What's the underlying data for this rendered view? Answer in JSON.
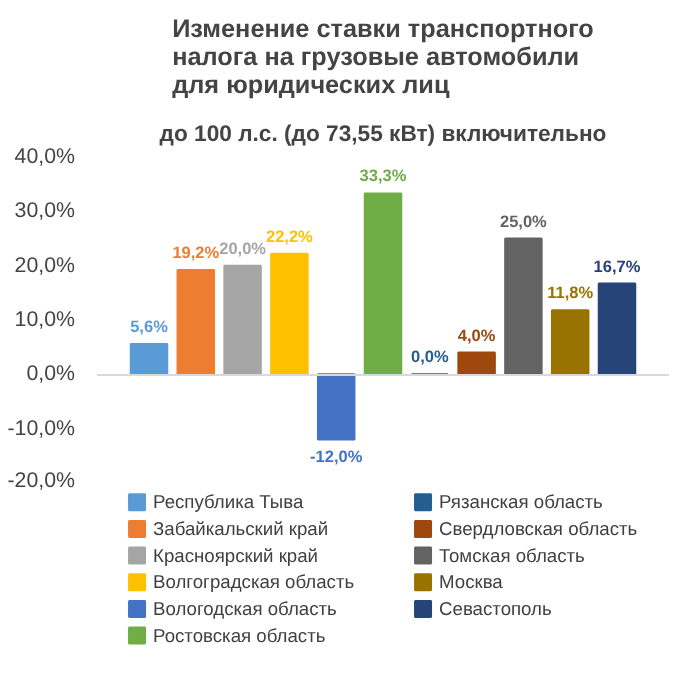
{
  "chart_data": {
    "type": "bar",
    "title": "Изменение ставки транспортного\nналога на грузовые автомобили\nдля юридических лиц",
    "subtitle": "до 100 л.с. (до 73,55 кВт) включительно",
    "categories": [
      null
    ],
    "series": [
      {
        "name": "Республика Тыва",
        "color": "#5b9bd5",
        "values": [
          5.6
        ],
        "value_labels": [
          "5,6%"
        ]
      },
      {
        "name": "Забайкальский край",
        "color": "#ed7d31",
        "values": [
          19.2
        ],
        "value_labels": [
          "19,2%"
        ]
      },
      {
        "name": "Красноярский край",
        "color": "#a5a5a5",
        "values": [
          20.0
        ],
        "value_labels": [
          "20,0%"
        ]
      },
      {
        "name": "Волгоградская область",
        "color": "#ffc000",
        "values": [
          22.2
        ],
        "value_labels": [
          "22,2%"
        ]
      },
      {
        "name": "Вологодская область",
        "color": "#4472c4",
        "values": [
          -12.0
        ],
        "value_labels": [
          "-12,0%"
        ]
      },
      {
        "name": "Ростовская область",
        "color": "#70ad47",
        "values": [
          33.3
        ],
        "value_labels": [
          "33,3%"
        ]
      },
      {
        "name": "Рязанская область",
        "color": "#255e91",
        "values": [
          0.0
        ],
        "value_labels": [
          "0,0%"
        ]
      },
      {
        "name": "Свердловская область",
        "color": "#9e480e",
        "values": [
          4.0
        ],
        "value_labels": [
          "4,0%"
        ]
      },
      {
        "name": "Томская область",
        "color": "#636363",
        "values": [
          25.0
        ],
        "value_labels": [
          "25,0%"
        ]
      },
      {
        "name": "Москва",
        "color": "#997300",
        "values": [
          11.8
        ],
        "value_labels": [
          "11,8%"
        ]
      },
      {
        "name": "Севастополь",
        "color": "#264478",
        "values": [
          16.7
        ],
        "value_labels": [
          "16,7%"
        ]
      }
    ],
    "ylim": [
      -20,
      40
    ],
    "yticks": [
      {
        "value": -20,
        "label": "-20,0%"
      },
      {
        "value": -10,
        "label": "-10,0%"
      },
      {
        "value": 0,
        "label": "0,0%"
      },
      {
        "value": 10,
        "label": "10,0%"
      },
      {
        "value": 20,
        "label": "20,0%"
      },
      {
        "value": 30,
        "label": "30,0%"
      },
      {
        "value": 40,
        "label": "40,0%"
      }
    ],
    "legend": "bottom"
  }
}
